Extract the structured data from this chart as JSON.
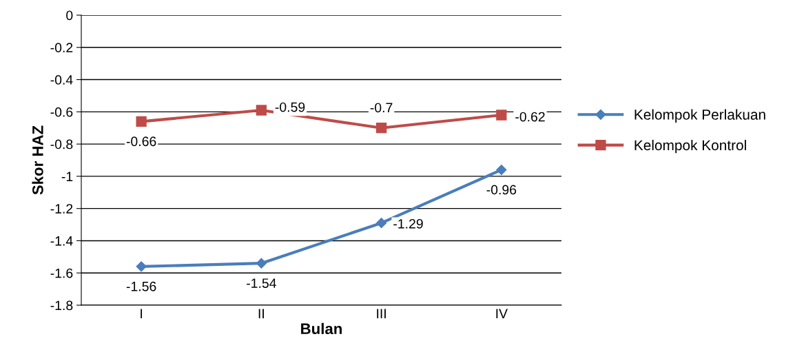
{
  "chart_data": {
    "type": "line",
    "xlabel": "Bulan",
    "ylabel": "Skor HAZ",
    "categories": [
      "I",
      "II",
      "III",
      "IV"
    ],
    "series": [
      {
        "name": "Kelompok Perlakuan",
        "color": "#4a7ebb",
        "marker": "diamond",
        "values": [
          -1.56,
          -1.54,
          -1.29,
          -0.96
        ]
      },
      {
        "name": "Kelompok Kontrol",
        "color": "#be4b48",
        "marker": "square",
        "values": [
          -0.66,
          -0.59,
          -0.7,
          -0.62
        ]
      }
    ],
    "ylim": [
      -1.8,
      0
    ],
    "yticks": [
      0,
      -0.2,
      -0.4,
      -0.6,
      -0.8,
      -1,
      -1.2,
      -1.4,
      -1.6,
      -1.8
    ],
    "grid": "y",
    "legend": "right",
    "data_labels": true,
    "line_style": "solid"
  }
}
